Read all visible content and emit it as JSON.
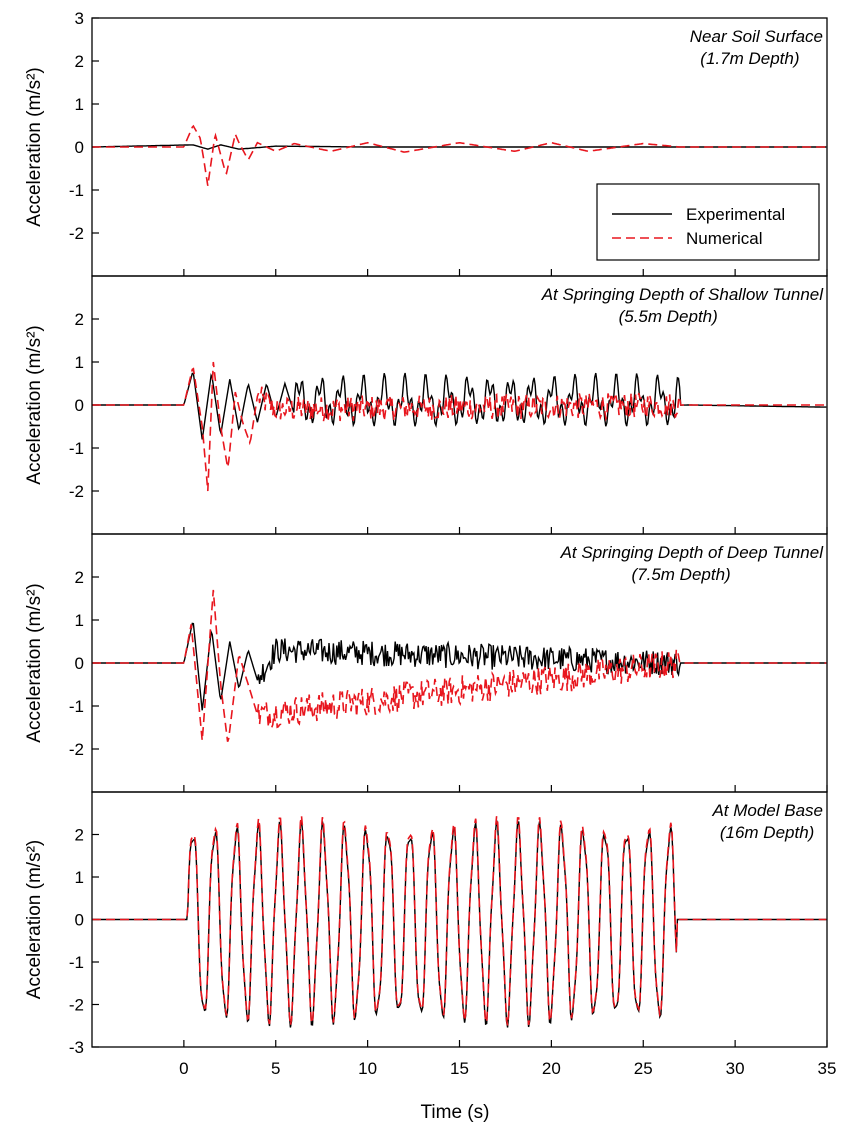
{
  "xlabel": "Time (s)",
  "x_ticks": [
    "0",
    "5",
    "10",
    "15",
    "20",
    "25",
    "30",
    "35"
  ],
  "legend": {
    "entries": [
      {
        "label": "Experimental",
        "color": "#000000",
        "dash": "solid"
      },
      {
        "label": "Numerical",
        "color": "#e8161e",
        "dash": "dashed"
      }
    ],
    "location": "upper-right of top panel"
  },
  "chart_data": [
    {
      "type": "line",
      "title": "Near Soil Surface",
      "subtitle": "(1.7m Depth)",
      "xlabel": "Time (s)",
      "ylabel": "Acceleration (m/s²)",
      "xlim": [
        -5,
        35
      ],
      "ylim": [
        -3,
        3
      ],
      "yticks": [
        "3",
        "2",
        "1",
        "0",
        "-1",
        "-2"
      ],
      "series": [
        {
          "name": "Experimental",
          "color": "#000000",
          "x": [
            -5,
            0.5,
            1.3,
            2.0,
            3.0,
            5.0,
            10.0,
            15.0,
            20.0,
            25.0,
            35.0
          ],
          "y": [
            0,
            0.05,
            -0.05,
            0.05,
            -0.05,
            0.02,
            0.0,
            0.0,
            0.0,
            0.0,
            0
          ]
        },
        {
          "name": "Numerical",
          "color": "#e8161e",
          "x": [
            -5,
            0.0,
            0.5,
            0.9,
            1.3,
            1.7,
            2.3,
            2.8,
            3.0,
            3.5,
            4.0,
            5.0,
            6.0,
            8.0,
            10.0,
            12.0,
            15.0,
            18.0,
            20.0,
            22.0,
            25.0,
            27.0,
            35.0
          ],
          "y": [
            0,
            0,
            0.5,
            0.2,
            -0.9,
            0.3,
            -0.65,
            0.3,
            0.1,
            -0.3,
            0.1,
            -0.1,
            0.08,
            -0.1,
            0.1,
            -0.12,
            0.1,
            -0.1,
            0.1,
            -0.1,
            0.08,
            0,
            0
          ]
        }
      ]
    },
    {
      "type": "line",
      "title": "At Springing Depth of Shallow Tunnel",
      "subtitle": "(5.5m Depth)",
      "xlabel": "Time (s)",
      "ylabel": "Acceleration (m/s²)",
      "xlim": [
        -5,
        35
      ],
      "ylim": [
        -3,
        3
      ],
      "yticks": [
        "2",
        "1",
        "0",
        "-1",
        "-2"
      ],
      "series": [
        {
          "name": "Experimental",
          "color": "#000000",
          "x": [
            -5,
            0.0,
            0.5,
            1.0,
            1.5,
            2.0,
            2.5,
            3.0,
            3.5,
            4.0,
            4.5,
            5.0,
            5.5,
            6.0,
            27.5,
            35.0
          ],
          "y": [
            0,
            0,
            0.8,
            -0.8,
            0.75,
            -0.7,
            0.6,
            -0.6,
            0.5,
            -0.4,
            0.5,
            -0.3,
            0.5,
            -0.2,
            0,
            -0.05
          ],
          "periodic": {
            "from": 6.0,
            "to": 27.0,
            "period": 1.15,
            "amplitude_pos": 0.5,
            "amplitude_neg": -0.25
          }
        },
        {
          "name": "Numerical",
          "color": "#e8161e",
          "x": [
            -5,
            0.0,
            0.5,
            1.0,
            1.3,
            1.6,
            2.0,
            2.4,
            2.8,
            3.2,
            3.6,
            4.0,
            5.0,
            27.0,
            35.0
          ],
          "y": [
            0,
            0,
            0.9,
            -0.5,
            -2.0,
            1.0,
            -0.5,
            -1.5,
            0.3,
            -0.4,
            -0.9,
            0.2,
            -0.1,
            0,
            0
          ],
          "noise_amplitude": 0.3
        }
      ]
    },
    {
      "type": "line",
      "title": "At Springing Depth of Deep Tunnel",
      "subtitle": "(7.5m Depth)",
      "xlabel": "Time (s)",
      "ylabel": "Acceleration (m/s²)",
      "xlim": [
        -5,
        35
      ],
      "ylim": [
        -3,
        3
      ],
      "yticks": [
        "2",
        "1",
        "0",
        "-1",
        "-2"
      ],
      "series": [
        {
          "name": "Experimental",
          "color": "#000000",
          "x": [
            -5,
            0.0,
            0.5,
            1.0,
            1.5,
            2.0,
            2.5,
            3.0,
            3.5,
            4.0,
            5.0,
            27.0,
            35.0
          ],
          "y": [
            0,
            0,
            1.0,
            -1.1,
            0.8,
            -0.9,
            0.5,
            -0.6,
            0.3,
            -0.4,
            0.3,
            0,
            0
          ],
          "noise_amplitude": 0.3
        },
        {
          "name": "Numerical",
          "color": "#e8161e",
          "x": [
            -5,
            0.0,
            0.4,
            1.0,
            1.6,
            2.0,
            2.4,
            3.0,
            3.5,
            4.0,
            27.0,
            35.0
          ],
          "y": [
            0,
            0,
            0.9,
            -1.8,
            1.7,
            -0.5,
            -1.9,
            0.2,
            -0.5,
            -1.2,
            0,
            0
          ],
          "noise_amplitude": 0.35
        }
      ]
    },
    {
      "type": "line",
      "title": "At Model Base",
      "subtitle": "(16m Depth)",
      "xlabel": "Time (s)",
      "ylabel": "Acceleration (m/s²)",
      "xlim": [
        -5,
        35
      ],
      "ylim": [
        -3,
        3
      ],
      "yticks": [
        "2",
        "1",
        "0",
        "-1",
        "-2",
        "-3"
      ],
      "series": [
        {
          "name": "Experimental",
          "color": "#000000",
          "x": [
            -5,
            0.0,
            27.0,
            35.0
          ],
          "y": [
            0,
            0,
            0,
            0
          ],
          "periodic": {
            "from": 0.2,
            "to": 26.8,
            "period": 1.18,
            "amplitude_pos": 2.1,
            "amplitude_neg": -2.3
          }
        },
        {
          "name": "Numerical",
          "color": "#e8161e",
          "x": [
            -5,
            0.0,
            27.0,
            35.0
          ],
          "y": [
            0,
            0,
            0,
            0
          ],
          "periodic": {
            "from": 0.2,
            "to": 26.8,
            "period": 1.18,
            "amplitude_pos": 2.2,
            "amplitude_neg": -2.25
          }
        }
      ]
    }
  ]
}
